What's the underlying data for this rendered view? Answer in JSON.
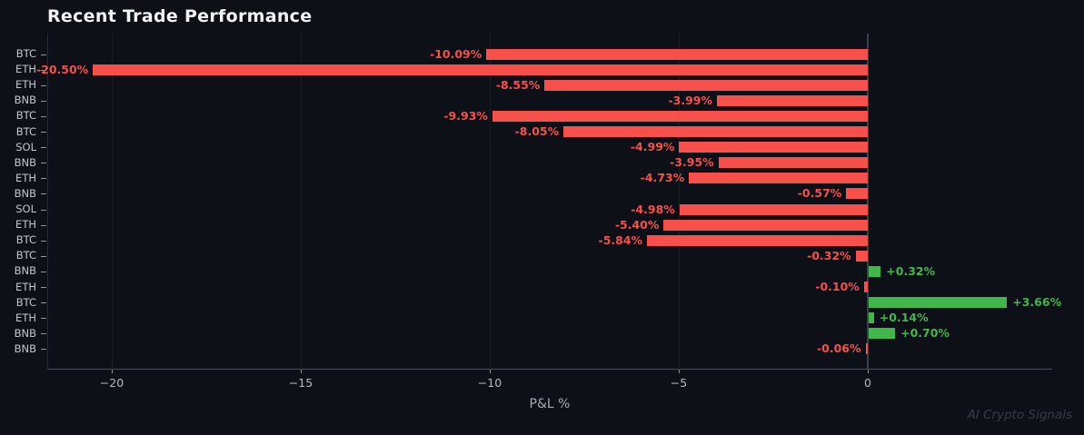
{
  "title": "Recent Trade Performance",
  "watermark": "AI Crypto Signals",
  "colors": {
    "background": "#0d1017",
    "negative_bar": "#f7504b",
    "positive_bar": "#41b64b",
    "zero_line": "#3a4049",
    "gridline": "#1a1e27",
    "axis_spine": "#4a505b",
    "tick": "#8d939c",
    "title_text": "#f2f3f5",
    "y_label_text": "#c3c7cd",
    "x_tick_text": "#b4b9c1",
    "xlabel_text": "#a7acb4",
    "watermark_text": "#363c47"
  },
  "chart_data": {
    "type": "bar",
    "orientation": "horizontal",
    "title": "Recent Trade Performance",
    "xlabel": "P&L %",
    "ylabel": "",
    "categories": [
      "BTC",
      "ETH",
      "ETH",
      "BNB",
      "BTC",
      "BTC",
      "SOL",
      "BNB",
      "ETH",
      "BNB",
      "SOL",
      "ETH",
      "BTC",
      "BTC",
      "BNB",
      "ETH",
      "BTC",
      "ETH",
      "BNB",
      "BNB"
    ],
    "values": [
      -10.09,
      -20.5,
      -8.55,
      -3.99,
      -9.93,
      -8.05,
      -4.99,
      -3.95,
      -4.73,
      -0.57,
      -4.98,
      -5.4,
      -5.84,
      -0.32,
      0.32,
      -0.1,
      3.66,
      0.14,
      0.7,
      -0.06
    ],
    "value_labels": [
      "-10.09%",
      "-20.50%",
      "-8.55%",
      "-3.99%",
      "-9.93%",
      "-8.05%",
      "-4.99%",
      "-3.95%",
      "-4.73%",
      "-0.57%",
      "-4.98%",
      "-5.40%",
      "-5.84%",
      "-0.32%",
      "+0.32%",
      "-0.10%",
      "+3.66%",
      "+0.14%",
      "+0.70%",
      "-0.06%"
    ],
    "x_ticks": [
      -20,
      -15,
      -10,
      -5,
      0
    ],
    "x_tick_labels": [
      "−20",
      "−15",
      "−10",
      "−5",
      "0"
    ],
    "xlim": [
      -21.7,
      4.9
    ],
    "legend": "none",
    "grid": "vertical gridlines at x ticks; zero line emphasized",
    "color_rule": "negative values red, positive values green"
  }
}
